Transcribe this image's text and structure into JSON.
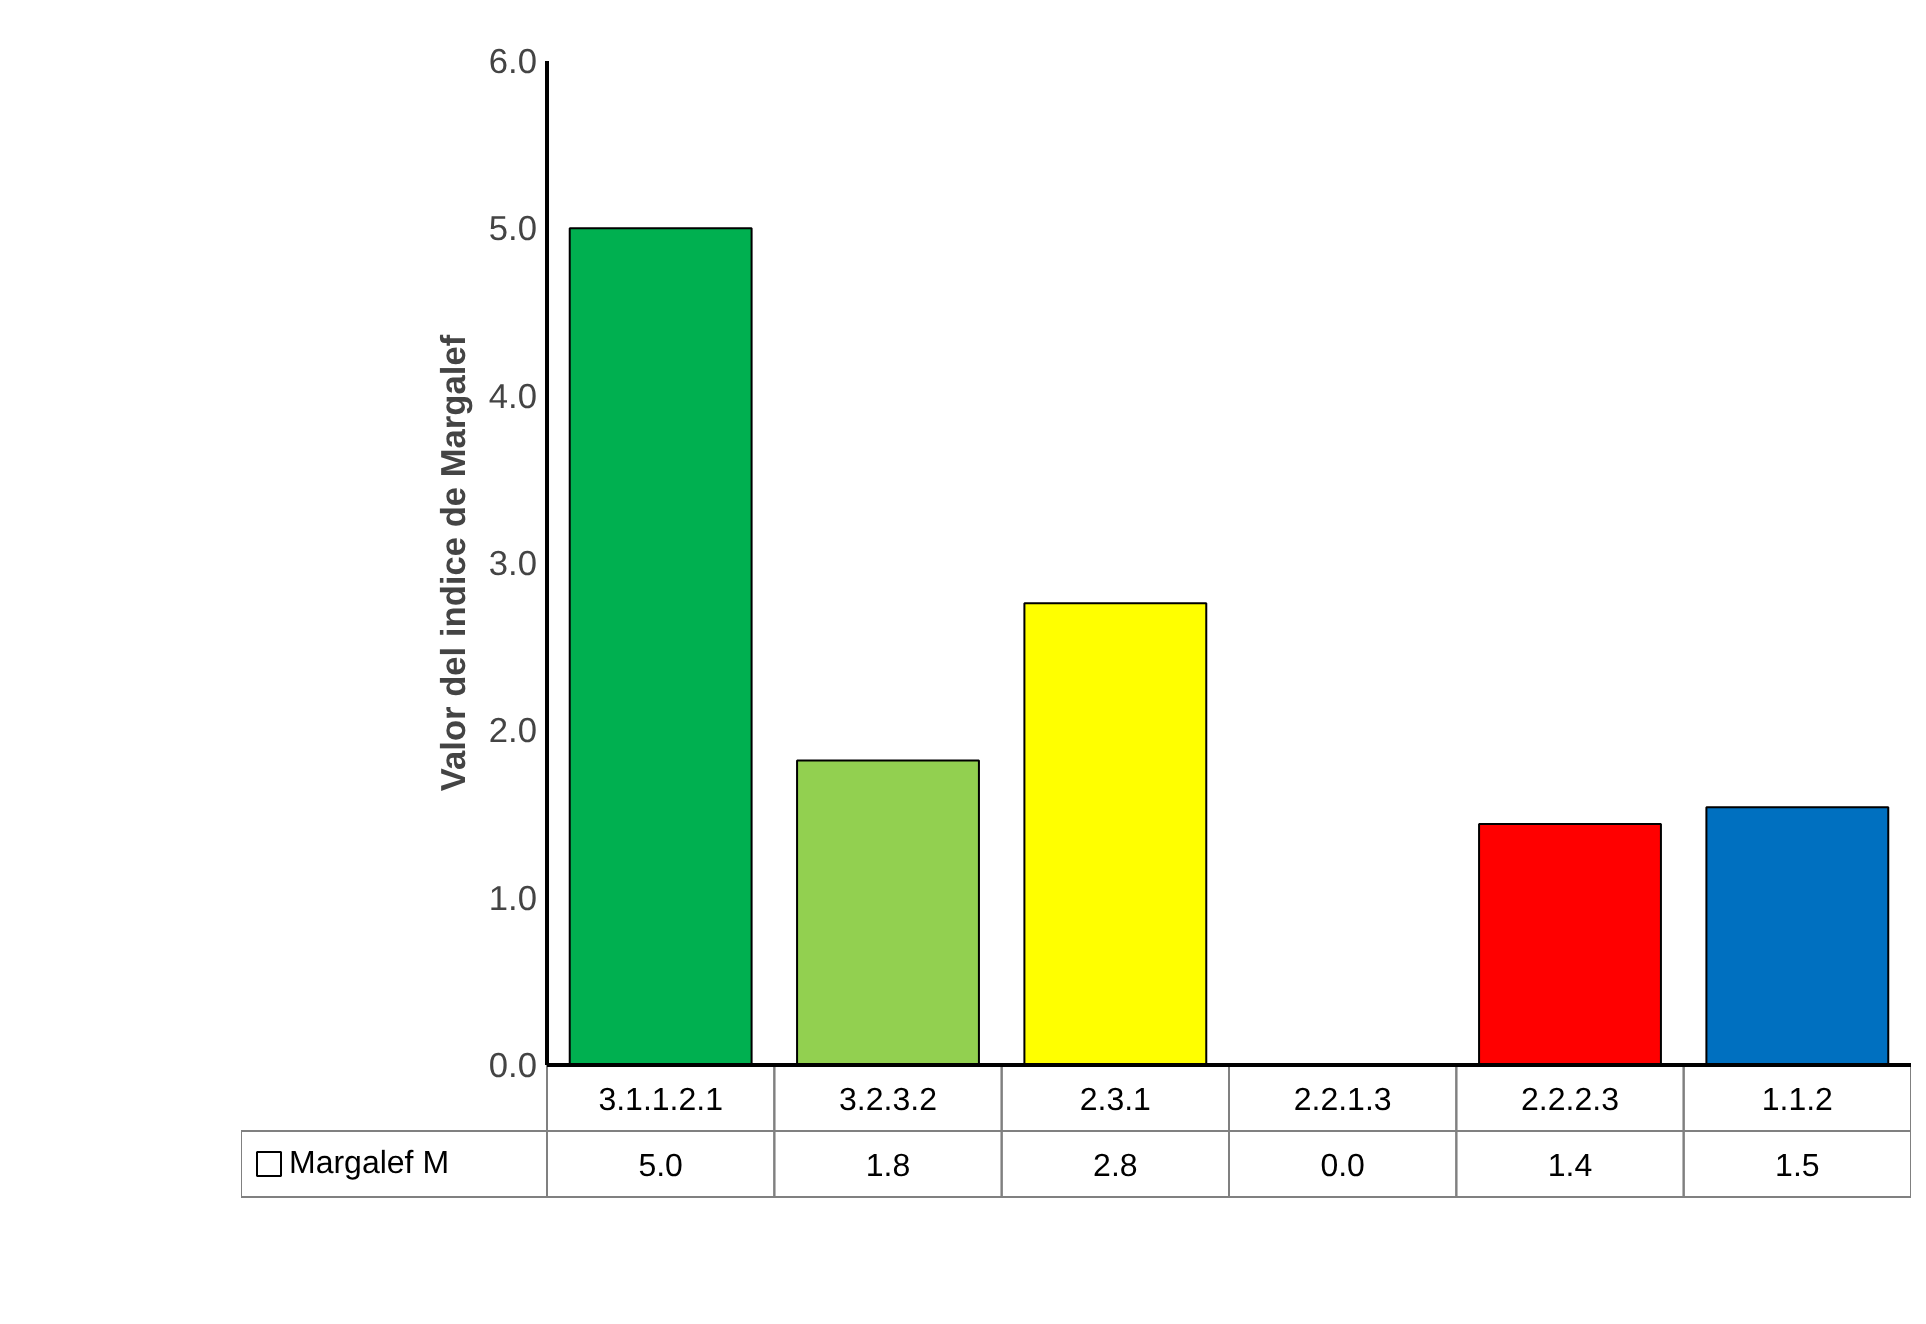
{
  "chart_data": {
    "type": "bar",
    "ylabel": "Valor del indice de Margalef",
    "categories": [
      "3.1.1.2.1",
      "3.2.3.2",
      "2.3.1",
      "2.2.1.3",
      "2.2.2.3",
      "1.1.2"
    ],
    "series": [
      {
        "name": "Margalef M",
        "values": [
          5.0,
          1.82,
          2.76,
          0.0,
          1.44,
          1.54
        ],
        "colors": [
          "#00b050",
          "#92d050",
          "#ffff00",
          null,
          "#ff0000",
          "#0070c0"
        ],
        "value_labels": [
          "5.0",
          "1.8",
          "2.8",
          "0.0",
          "1.4",
          "1.5"
        ]
      }
    ],
    "ylim": [
      0,
      6
    ],
    "yticks": [
      {
        "value": 0,
        "label": "0.0"
      },
      {
        "value": 1,
        "label": "1.0"
      },
      {
        "value": 2,
        "label": "2.0"
      },
      {
        "value": 3,
        "label": "3.0"
      },
      {
        "value": 4,
        "label": "4.0"
      },
      {
        "value": 5,
        "label": "5.0"
      },
      {
        "value": 6,
        "label": "6.0"
      }
    ],
    "grid": false,
    "legend": "bottom"
  }
}
